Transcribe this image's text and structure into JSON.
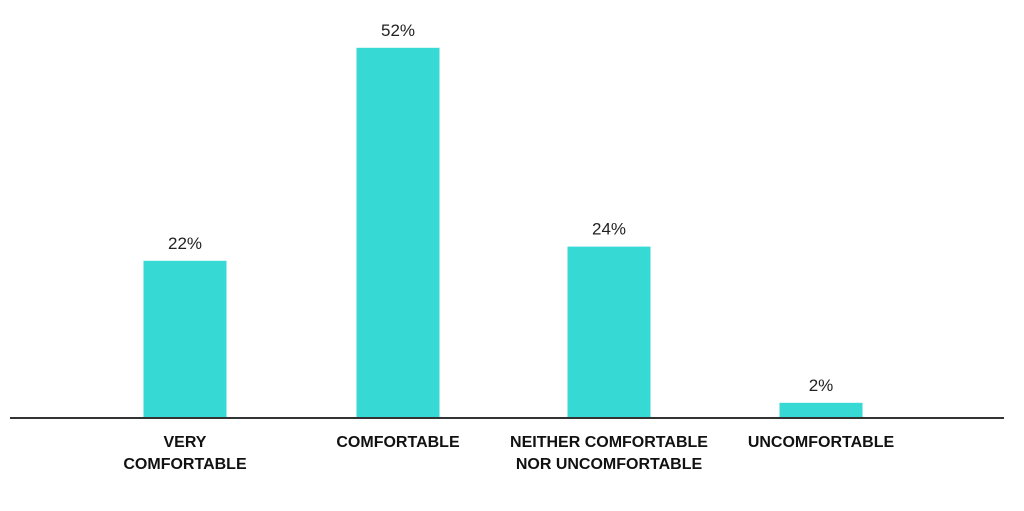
{
  "chart_data": {
    "type": "bar",
    "categories": [
      "VERY COMFORTABLE",
      "COMFORTABLE",
      "NEITHER COMFORTABLE NOR UNCOMFORTABLE",
      "UNCOMFORTABLE"
    ],
    "values": [
      22,
      52,
      24,
      2
    ],
    "value_labels": [
      "22%",
      "52%",
      "24%",
      "2%"
    ],
    "color": "#36d9d4"
  }
}
